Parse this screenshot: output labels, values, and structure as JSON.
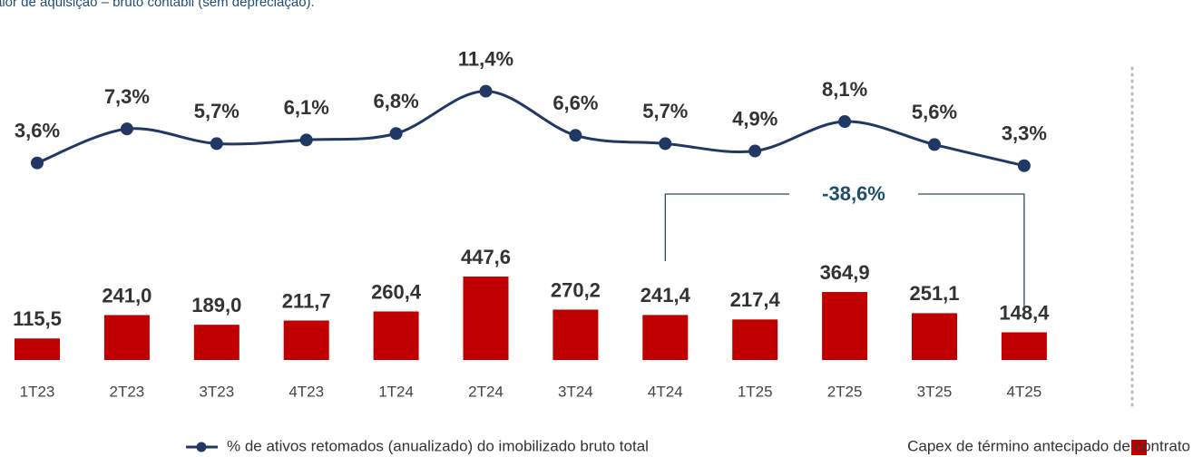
{
  "chart_data": {
    "type": "bar",
    "subtitle": "alor de aquisição – bruto contábil (sem depreciação).",
    "categories": [
      "1T23",
      "2T23",
      "3T23",
      "4T23",
      "1T24",
      "2T24",
      "3T24",
      "4T24",
      "1T25",
      "2T25",
      "3T25",
      "4T25"
    ],
    "series": [
      {
        "name": "% de ativos retomados (anualizado) do imobilizado bruto total",
        "type": "line",
        "axis": "y2",
        "color": "#1f3864",
        "values": [
          3.6,
          7.3,
          5.7,
          6.1,
          6.8,
          11.4,
          6.6,
          5.7,
          4.9,
          8.1,
          5.6,
          3.3
        ],
        "value_labels": [
          "3,6%",
          "7,3%",
          "5,7%",
          "6,1%",
          "6,8%",
          "11,4%",
          "6,6%",
          "5,7%",
          "4,9%",
          "8,1%",
          "5,6%",
          "3,3%"
        ]
      },
      {
        "name": "Capex de término antecipado de contrato",
        "type": "bar",
        "color": "#c00000",
        "values": [
          115.5,
          241.0,
          189.0,
          211.7,
          260.4,
          447.6,
          270.2,
          241.4,
          217.4,
          364.9,
          251.1,
          148.4
        ],
        "value_labels": [
          "115,5",
          "241,0",
          "189,0",
          "211,7",
          "260,4",
          "447,6",
          "270,2",
          "241,4",
          "217,4",
          "364,9",
          "251,1",
          "148,4"
        ]
      }
    ],
    "ylim": [
      0,
      1640
    ],
    "y2lim": [
      1.6,
      15.4
    ],
    "annotation": "-38,6%"
  }
}
